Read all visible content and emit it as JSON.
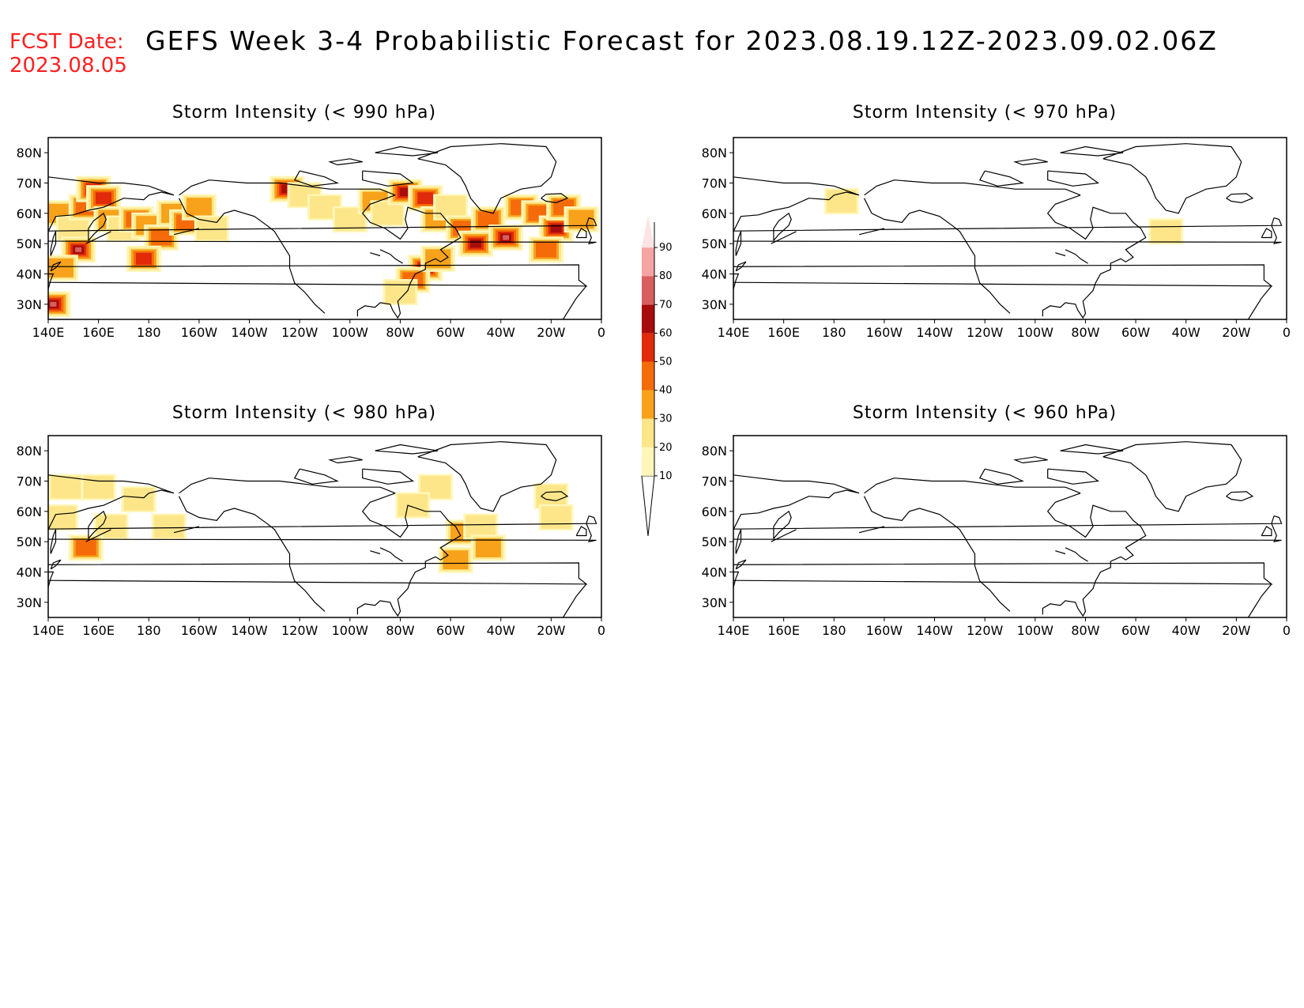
{
  "header": {
    "fcst_label": "FCST Date:",
    "fcst_date": "2023.08.05",
    "title": "GEFS Week 3-4 Probabilistic Forecast for 2023.08.19.12Z-2023.09.02.06Z"
  },
  "panels": [
    {
      "title": "Storm Intensity (< 990 hPa)"
    },
    {
      "title": "Storm Intensity (< 970 hPa)"
    },
    {
      "title": "Storm Intensity (< 980 hPa)"
    },
    {
      "title": "Storm Intensity (< 960 hPa)"
    }
  ],
  "axes": {
    "lon_labels": [
      "140E",
      "160E",
      "180",
      "160W",
      "140W",
      "120W",
      "100W",
      "80W",
      "60W",
      "40W",
      "20W",
      "0"
    ],
    "lat_labels": [
      "80N",
      "70N",
      "60N",
      "50N",
      "40N",
      "30N"
    ]
  },
  "colorbar": {
    "labels": [
      "10",
      "20",
      "30",
      "40",
      "50",
      "60",
      "70",
      "80",
      "90"
    ],
    "colors": [
      "#fff6b8",
      "#fde68a",
      "#f7a21a",
      "#f56b0a",
      "#e02a0a",
      "#a80c0c",
      "#d95f5f",
      "#f5a3a3",
      "#fde3e3"
    ]
  },
  "chart_data": {
    "type": "heatmap",
    "note_units": "probability (%)",
    "panels": [
      {
        "name": "990",
        "blobs": [
          {
            "lon": 145,
            "lat": 60,
            "p": 30
          },
          {
            "lon": 150,
            "lat": 55,
            "p": 20
          },
          {
            "lon": 155,
            "lat": 62,
            "p": 40
          },
          {
            "lon": 158,
            "lat": 68,
            "p": 60
          },
          {
            "lon": 162,
            "lat": 65,
            "p": 50
          },
          {
            "lon": 165,
            "lat": 58,
            "p": 30
          },
          {
            "lon": 170,
            "lat": 55,
            "p": 20
          },
          {
            "lon": 175,
            "lat": 58,
            "p": 40
          },
          {
            "lon": 180,
            "lat": 56,
            "p": 30
          },
          {
            "lon": -175,
            "lat": 52,
            "p": 40
          },
          {
            "lon": -170,
            "lat": 60,
            "p": 30
          },
          {
            "lon": -165,
            "lat": 57,
            "p": 40
          },
          {
            "lon": -160,
            "lat": 62,
            "p": 30
          },
          {
            "lon": -155,
            "lat": 55,
            "p": 20
          },
          {
            "lon": 142,
            "lat": 30,
            "p": 70
          },
          {
            "lon": 152,
            "lat": 48,
            "p": 70
          },
          {
            "lon": 178,
            "lat": 45,
            "p": 50
          },
          {
            "lon": 145,
            "lat": 42,
            "p": 30
          },
          {
            "lon": -125,
            "lat": 68,
            "p": 60
          },
          {
            "lon": -118,
            "lat": 66,
            "p": 20
          },
          {
            "lon": -110,
            "lat": 62,
            "p": 20
          },
          {
            "lon": -100,
            "lat": 58,
            "p": 20
          },
          {
            "lon": -90,
            "lat": 64,
            "p": 30
          },
          {
            "lon": -85,
            "lat": 60,
            "p": 20
          },
          {
            "lon": -78,
            "lat": 67,
            "p": 60
          },
          {
            "lon": -70,
            "lat": 65,
            "p": 50
          },
          {
            "lon": -65,
            "lat": 58,
            "p": 30
          },
          {
            "lon": -60,
            "lat": 62,
            "p": 20
          },
          {
            "lon": -55,
            "lat": 55,
            "p": 40
          },
          {
            "lon": -50,
            "lat": 50,
            "p": 60
          },
          {
            "lon": -45,
            "lat": 58,
            "p": 40
          },
          {
            "lon": -38,
            "lat": 52,
            "p": 70
          },
          {
            "lon": -32,
            "lat": 62,
            "p": 40
          },
          {
            "lon": -25,
            "lat": 60,
            "p": 40
          },
          {
            "lon": -18,
            "lat": 55,
            "p": 60
          },
          {
            "lon": -15,
            "lat": 62,
            "p": 40
          },
          {
            "lon": -8,
            "lat": 58,
            "p": 30
          },
          {
            "lon": -70,
            "lat": 42,
            "p": 60
          },
          {
            "lon": -75,
            "lat": 38,
            "p": 40
          },
          {
            "lon": -80,
            "lat": 34,
            "p": 20
          },
          {
            "lon": -65,
            "lat": 45,
            "p": 30
          },
          {
            "lon": -22,
            "lat": 48,
            "p": 40
          }
        ]
      },
      {
        "name": "970",
        "blobs": [
          {
            "lon": -177,
            "lat": 64,
            "p": 20
          },
          {
            "lon": -48,
            "lat": 54,
            "p": 20
          }
        ]
      },
      {
        "name": "980",
        "blobs": [
          {
            "lon": 147,
            "lat": 68,
            "p": 20
          },
          {
            "lon": 160,
            "lat": 68,
            "p": 20
          },
          {
            "lon": 176,
            "lat": 64,
            "p": 20
          },
          {
            "lon": 165,
            "lat": 55,
            "p": 20
          },
          {
            "lon": 145,
            "lat": 58,
            "p": 20
          },
          {
            "lon": 155,
            "lat": 48,
            "p": 40
          },
          {
            "lon": -172,
            "lat": 55,
            "p": 20
          },
          {
            "lon": -66,
            "lat": 68,
            "p": 20
          },
          {
            "lon": -75,
            "lat": 62,
            "p": 20
          },
          {
            "lon": -55,
            "lat": 53,
            "p": 30
          },
          {
            "lon": -48,
            "lat": 55,
            "p": 20
          },
          {
            "lon": -45,
            "lat": 48,
            "p": 30
          },
          {
            "lon": -58,
            "lat": 44,
            "p": 30
          },
          {
            "lon": -20,
            "lat": 65,
            "p": 20
          },
          {
            "lon": -18,
            "lat": 58,
            "p": 20
          }
        ]
      },
      {
        "name": "960",
        "blobs": []
      }
    ]
  }
}
